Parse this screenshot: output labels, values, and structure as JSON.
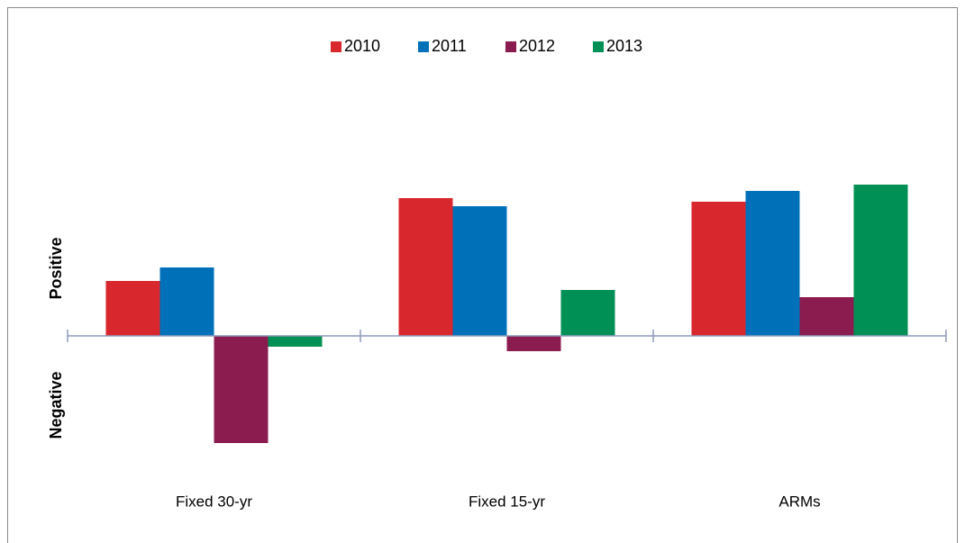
{
  "chart_data": {
    "type": "bar",
    "categories": [
      "Fixed 30-yr",
      "Fixed 15-yr",
      "ARMs"
    ],
    "series": [
      {
        "name": "2010",
        "color": "#d9272e",
        "values": [
          61,
          153,
          149
        ]
      },
      {
        "name": "2011",
        "color": "#0070b9",
        "values": [
          76,
          144,
          161
        ]
      },
      {
        "name": "2012",
        "color": "#8b1c4f",
        "values": [
          -119,
          -17,
          43
        ]
      },
      {
        "name": "2013",
        "color": "#009055",
        "values": [
          -12,
          51,
          168
        ]
      }
    ],
    "positive_label": "Positive",
    "negative_label": "Negative",
    "ylim": [
      -160,
      240
    ],
    "legend": "top",
    "grid": false
  }
}
